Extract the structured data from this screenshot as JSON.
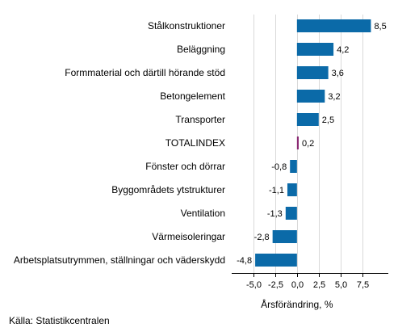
{
  "chart_data": {
    "type": "bar",
    "orientation": "horizontal",
    "categories": [
      "Stålkonstruktioner",
      "Beläggning",
      "Formmaterial och därtill hörande stöd",
      "Betongelement",
      "Transporter",
      "TOTALINDEX",
      "Fönster och dörrar",
      "Byggområdets ytstrukturer",
      "Ventilation",
      "Värmeisoleringar",
      "Arbetsplatsutrymmen, ställningar och väderskydd"
    ],
    "values": [
      8.5,
      4.2,
      3.6,
      3.2,
      2.5,
      0.2,
      -0.8,
      -1.1,
      -1.3,
      -2.8,
      -4.8
    ],
    "value_labels": [
      "8,5",
      "4,2",
      "3,6",
      "3,2",
      "2,5",
      "0,2",
      "-0,8",
      "-1,1",
      "-1,3",
      "-2,8",
      "-4,8"
    ],
    "highlight_category": "TOTALINDEX",
    "xlabel": "Årsförändring, %",
    "xlim": [
      -7.5,
      10.5
    ],
    "xticks": [
      -5.0,
      -2.5,
      0.0,
      2.5,
      5.0,
      7.5
    ],
    "xtick_labels": [
      "-5,0",
      "-2,5",
      "0,0",
      "2,5",
      "5,0",
      "7,5"
    ],
    "grid": true,
    "colors": {
      "bar": "#0b6aa8",
      "highlight": "#8b2a73",
      "grid": "#d9d9d9",
      "axis": "#000000"
    }
  },
  "source_text": "Källa: Statistikcentralen"
}
